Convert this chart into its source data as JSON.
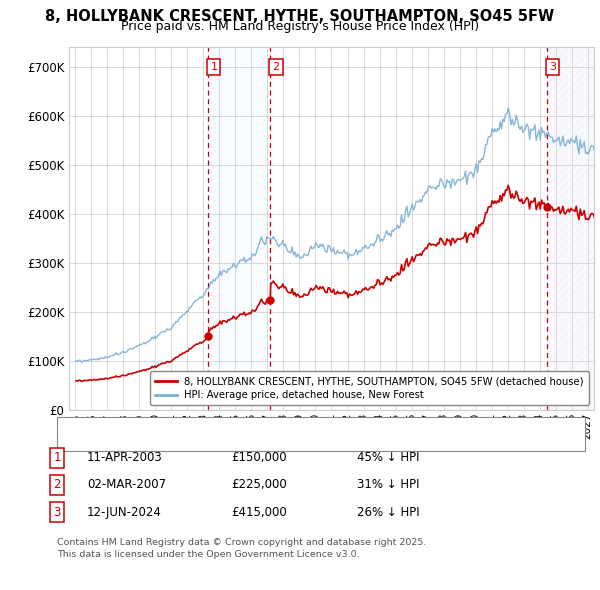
{
  "title": "8, HOLLYBANK CRESCENT, HYTHE, SOUTHAMPTON, SO45 5FW",
  "subtitle": "Price paid vs. HM Land Registry's House Price Index (HPI)",
  "ylabel_ticks": [
    "£0",
    "£100K",
    "£200K",
    "£300K",
    "£400K",
    "£500K",
    "£600K",
    "£700K"
  ],
  "ytick_values": [
    0,
    100000,
    200000,
    300000,
    400000,
    500000,
    600000,
    700000
  ],
  "ylim": [
    0,
    740000
  ],
  "xlim_start": 1994.6,
  "xlim_end": 2027.4,
  "xtick_years": [
    1995,
    1996,
    1997,
    1998,
    1999,
    2000,
    2001,
    2002,
    2003,
    2004,
    2005,
    2006,
    2007,
    2008,
    2009,
    2010,
    2011,
    2012,
    2013,
    2014,
    2015,
    2016,
    2017,
    2018,
    2019,
    2020,
    2021,
    2022,
    2023,
    2024,
    2025,
    2026,
    2027
  ],
  "transactions": [
    {
      "num": 1,
      "date": "11-APR-2003",
      "price": 150000,
      "pct": "45% ↓ HPI",
      "year": 2003.28
    },
    {
      "num": 2,
      "date": "02-MAR-2007",
      "price": 225000,
      "pct": "31% ↓ HPI",
      "year": 2007.17
    },
    {
      "num": 3,
      "date": "12-JUN-2024",
      "price": 415000,
      "pct": "26% ↓ HPI",
      "year": 2024.44
    }
  ],
  "legend_red_label": "8, HOLLYBANK CRESCENT, HYTHE, SOUTHAMPTON, SO45 5FW (detached house)",
  "legend_blue_label": "HPI: Average price, detached house, New Forest",
  "footer": "Contains HM Land Registry data © Crown copyright and database right 2025.\nThis data is licensed under the Open Government Licence v3.0.",
  "red_color": "#cc0000",
  "blue_color": "#7aafd4",
  "shade_color": "#ddeeff",
  "title_fontsize": 10.5,
  "subtitle_fontsize": 9
}
